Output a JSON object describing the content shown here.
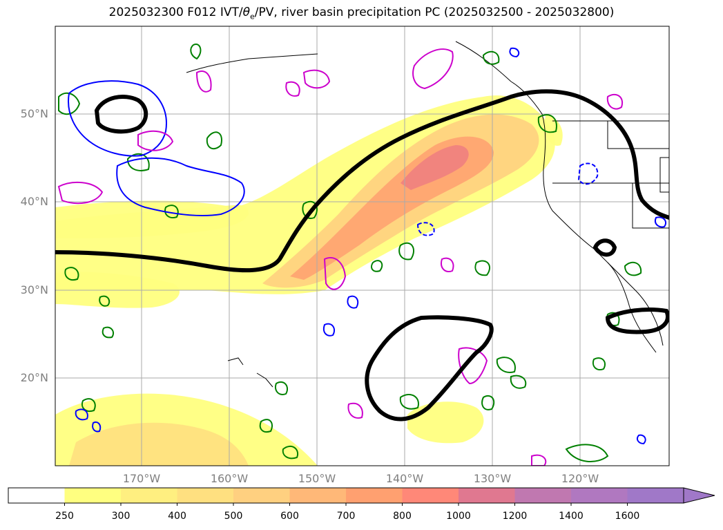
{
  "title": {
    "prefix": "2025032300 F012 IVT/",
    "theta": "θ",
    "theta_sub": "e",
    "suffix": "/PV, river basin precipitation PC (2025032500 - 2025032800)"
  },
  "axes": {
    "lat_labels": [
      "50°N",
      "40°N",
      "30°N",
      "20°N"
    ],
    "lon_labels": [
      "170°W",
      "160°W",
      "150°W",
      "140°W",
      "130°W",
      "120°W"
    ]
  },
  "colorbar": {
    "ticks": [
      "250",
      "300",
      "400",
      "500",
      "600",
      "700",
      "800",
      "1000",
      "1200",
      "1400",
      "1600"
    ],
    "colors": [
      "#ffffff",
      "#ffff80",
      "#ffef80",
      "#ffe080",
      "#ffd080",
      "#ffb878",
      "#ffa070",
      "#ff8878",
      "#e07890",
      "#c078b0",
      "#b078c0",
      "#a078c8"
    ],
    "extend": "max"
  },
  "legend_colors": {
    "ivt_core": "#f08080",
    "ivt_low": "#ffff80",
    "theta_e_contour": "#000000",
    "pv_positive": "#0000ff",
    "pv_negative": "#cc00cc",
    "precip_pc": "#008000",
    "gridline": "#aaaaaa"
  }
}
